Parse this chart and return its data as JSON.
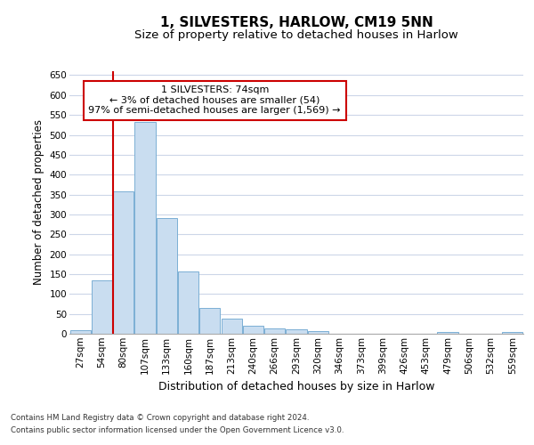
{
  "title": "1, SILVESTERS, HARLOW, CM19 5NN",
  "subtitle": "Size of property relative to detached houses in Harlow",
  "xlabel": "Distribution of detached houses by size in Harlow",
  "ylabel": "Number of detached properties",
  "categories": [
    "27sqm",
    "54sqm",
    "80sqm",
    "107sqm",
    "133sqm",
    "160sqm",
    "187sqm",
    "213sqm",
    "240sqm",
    "266sqm",
    "293sqm",
    "320sqm",
    "346sqm",
    "373sqm",
    "399sqm",
    "426sqm",
    "453sqm",
    "479sqm",
    "506sqm",
    "532sqm",
    "559sqm"
  ],
  "values": [
    10,
    135,
    358,
    533,
    290,
    157,
    65,
    38,
    20,
    14,
    11,
    7,
    0,
    0,
    0,
    0,
    0,
    4,
    0,
    0,
    4
  ],
  "bar_color": "#c9ddf0",
  "bar_edge_color": "#7bafd4",
  "marker_line_color": "#cc0000",
  "annotation_text": "1 SILVESTERS: 74sqm\n← 3% of detached houses are smaller (54)\n97% of semi-detached houses are larger (1,569) →",
  "annotation_box_color": "#ffffff",
  "annotation_box_edge": "#cc0000",
  "ylim": [
    0,
    660
  ],
  "yticks": [
    0,
    50,
    100,
    150,
    200,
    250,
    300,
    350,
    400,
    450,
    500,
    550,
    600,
    650
  ],
  "footer_line1": "Contains HM Land Registry data © Crown copyright and database right 2024.",
  "footer_line2": "Contains public sector information licensed under the Open Government Licence v3.0.",
  "bg_color": "#ffffff",
  "grid_color": "#ccd6e8"
}
